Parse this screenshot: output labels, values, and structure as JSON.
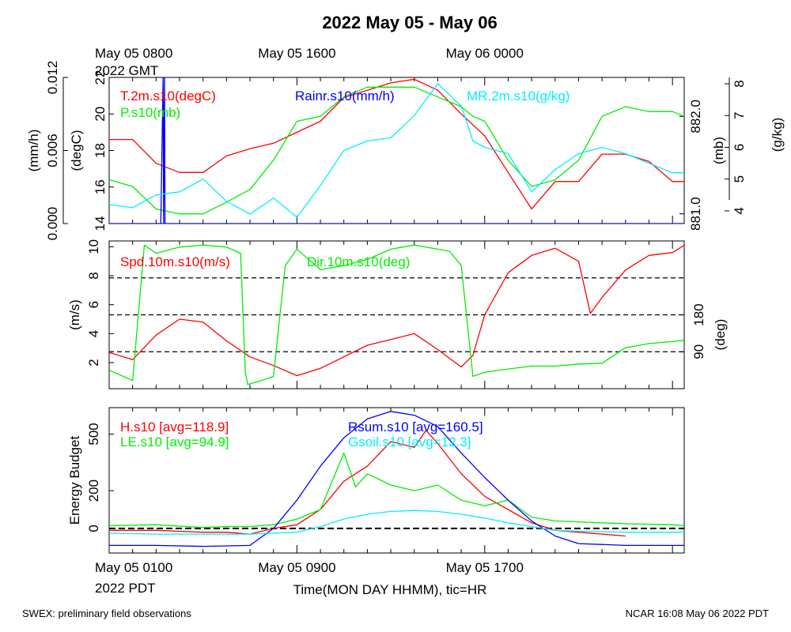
{
  "title": "2022 May 05 - May 06",
  "footer_left": "SWEX: preliminary field observations",
  "footer_right": "NCAR 16:08 May 06 2022 PDT",
  "top_time_labels": [
    {
      "hour": 0,
      "line1": "May 05 0800",
      "line2": "2022 GMT"
    },
    {
      "hour": 8,
      "line1": "May 05 1600",
      "line2": ""
    },
    {
      "hour": 16,
      "line1": "May 06 0000",
      "line2": ""
    }
  ],
  "bottom_time_labels": [
    {
      "hour": 0,
      "line1": "May 05 0100",
      "line2": "2022 PDT"
    },
    {
      "hour": 8,
      "line1": "May 05 0900",
      "line2": ""
    },
    {
      "hour": 16,
      "line1": "May 05 1700",
      "line2": ""
    }
  ],
  "xlabel": "Time(MON DAY HHMM), tic=HR",
  "colors": {
    "red": "#ff0000",
    "green": "#00ee00",
    "blue": "#0000ff",
    "cyan": "#00eeff",
    "black": "#000000"
  },
  "chart_data": [
    {
      "id": "met",
      "type": "line",
      "x_range_hours": [
        0,
        24.5
      ],
      "axes": [
        {
          "side": "left",
          "position": "outer",
          "label": "(mm/h)",
          "range": [
            0.0,
            0.012
          ],
          "ticks": [
            "0.000",
            "0.006",
            "0.012"
          ]
        },
        {
          "side": "left",
          "position": "inner",
          "label": "(degC)",
          "range": [
            14,
            22
          ],
          "ticks": [
            "14",
            "16",
            "18",
            "20",
            "22"
          ]
        },
        {
          "side": "right",
          "position": "inner",
          "label": "(mb)",
          "range": [
            880.9,
            882.4
          ],
          "ticks": [
            "881.0",
            "882.0"
          ]
        },
        {
          "side": "right",
          "position": "outer",
          "label": "(g/kg)",
          "range": [
            3.6,
            8.2
          ],
          "ticks": [
            "4",
            "5",
            "6",
            "7",
            "8"
          ]
        }
      ],
      "series": [
        {
          "name": "T.2m.s10(degC)",
          "color": "red",
          "axis": 1,
          "x": [
            0,
            1,
            2,
            3,
            4,
            5,
            6,
            7,
            8,
            9,
            10,
            11,
            12,
            13,
            14,
            15,
            16,
            17,
            18,
            19,
            20,
            21,
            22,
            23,
            24,
            24.5
          ],
          "y": [
            18.6,
            18.6,
            17.3,
            16.8,
            16.8,
            17.7,
            18.1,
            18.4,
            19.0,
            19.6,
            20.9,
            21.3,
            21.7,
            21.9,
            21.3,
            20.0,
            18.8,
            16.8,
            14.8,
            16.3,
            16.3,
            17.8,
            17.8,
            17.4,
            16.3,
            16.3
          ]
        },
        {
          "name": "P.s10(mb)",
          "color": "green",
          "axis": 2,
          "x": [
            0,
            1,
            2,
            3,
            4,
            5,
            6,
            7,
            8,
            9,
            10,
            11,
            12,
            13,
            14,
            15,
            15.5,
            16,
            17,
            18,
            19,
            20,
            21,
            22,
            23,
            24,
            24.5
          ],
          "y": [
            881.35,
            881.28,
            881.05,
            881.0,
            881.0,
            881.12,
            881.25,
            881.55,
            881.95,
            882.0,
            882.2,
            882.3,
            882.3,
            882.3,
            882.2,
            882.1,
            882.0,
            881.95,
            881.55,
            881.28,
            881.35,
            881.55,
            882.0,
            882.1,
            882.05,
            882.05,
            882.0
          ]
        },
        {
          "name": "Rainr.s10(mm/h)",
          "color": "blue",
          "axis": 0,
          "x": [
            0,
            2.2,
            2.3,
            2.32,
            2.36,
            2.38,
            2.45,
            24.5
          ],
          "y": [
            0,
            0,
            0.012,
            0.0,
            0.012,
            0.0,
            0.0,
            0.0
          ]
        },
        {
          "name": "MR.2m.s10(g/kg)",
          "color": "cyan",
          "axis": 3,
          "x": [
            0,
            1,
            2,
            3,
            4,
            5,
            6,
            7,
            8,
            9,
            10,
            11,
            12,
            13,
            14,
            15,
            15.5,
            16,
            17,
            18,
            19,
            20,
            21,
            22,
            23,
            24,
            24.5
          ],
          "y": [
            4.2,
            4.1,
            4.5,
            4.6,
            5.0,
            4.3,
            3.9,
            4.4,
            3.8,
            4.8,
            5.9,
            6.2,
            6.3,
            7.0,
            8.0,
            7.3,
            6.2,
            6.0,
            5.8,
            4.6,
            5.3,
            5.8,
            6.0,
            5.8,
            5.5,
            5.2,
            5.2
          ]
        }
      ]
    },
    {
      "id": "wind",
      "type": "line",
      "x_range_hours": [
        0,
        24.5
      ],
      "axes": [
        {
          "side": "left",
          "label": "(m/s)",
          "range": [
            0.2,
            10.4
          ],
          "ticks": [
            "2",
            "4",
            "6",
            "8",
            "10"
          ]
        },
        {
          "side": "right",
          "label": "(deg)",
          "range": [
            0,
            360
          ],
          "ticks": [
            "90",
            "180"
          ]
        }
      ],
      "dashed_lines_deg": [
        90,
        180,
        270
      ],
      "series": [
        {
          "name": "Spd.10m.s10(m/s)",
          "color": "red",
          "axis": 0,
          "x": [
            0,
            1,
            2,
            3,
            4,
            5,
            6,
            7,
            8,
            9,
            10,
            11,
            12,
            13,
            14,
            15,
            15.5,
            16,
            17,
            18,
            19,
            20,
            20.5,
            21,
            22,
            23,
            24,
            24.5
          ],
          "y": [
            2.7,
            2.2,
            3.9,
            5.0,
            4.8,
            3.5,
            2.4,
            1.8,
            1.1,
            1.6,
            2.4,
            3.2,
            3.6,
            4.0,
            2.9,
            1.7,
            2.5,
            5.3,
            8.2,
            9.4,
            9.9,
            9.0,
            5.4,
            6.5,
            8.4,
            9.4,
            9.6,
            10.1
          ]
        },
        {
          "name": "Dir.10m.s10(deg)",
          "color": "green",
          "axis": 1,
          "x": [
            0,
            1,
            1.5,
            2,
            3,
            4,
            5,
            5.6,
            5.8,
            5.9,
            6.5,
            7,
            7.5,
            8,
            9,
            10,
            11,
            12,
            13,
            14,
            14.5,
            15,
            15.5,
            16,
            17,
            18,
            19,
            20,
            21,
            22,
            23,
            24,
            24.5
          ],
          "y": [
            45,
            20,
            350,
            330,
            345,
            350,
            345,
            330,
            40,
            10,
            20,
            30,
            300,
            340,
            290,
            300,
            315,
            340,
            350,
            340,
            335,
            300,
            30,
            40,
            48,
            55,
            55,
            60,
            62,
            100,
            110,
            115,
            118
          ]
        }
      ]
    },
    {
      "id": "energy",
      "type": "line",
      "x_range_hours": [
        0,
        24.5
      ],
      "axes": [
        {
          "side": "left",
          "label": "Energy Budget",
          "range": [
            -130,
            640
          ],
          "ticks": [
            "0",
            "200",
            "500"
          ]
        }
      ],
      "dashed_lines_value": [
        0
      ],
      "series": [
        {
          "name": "H.s10 [avg=118.9]",
          "color": "red",
          "x": [
            0,
            2,
            4,
            5,
            6,
            7,
            8,
            9,
            10,
            11,
            12,
            13,
            13.5,
            14,
            15,
            16,
            17,
            18,
            19,
            20,
            21,
            22
          ],
          "y": [
            -10,
            -10,
            -20,
            -20,
            -30,
            0,
            20,
            100,
            250,
            330,
            460,
            430,
            520,
            450,
            290,
            170,
            100,
            30,
            -10,
            -20,
            -30,
            -40
          ]
        },
        {
          "name": "LE.s10 [avg=94.9]",
          "color": "green",
          "x": [
            0,
            2,
            4,
            5,
            6,
            7,
            8,
            9,
            10,
            10.5,
            11,
            12,
            13,
            14,
            15,
            16,
            17,
            18,
            19,
            20,
            22,
            24,
            24.5
          ],
          "y": [
            15,
            20,
            5,
            10,
            10,
            20,
            50,
            100,
            400,
            220,
            290,
            230,
            200,
            230,
            150,
            120,
            150,
            60,
            40,
            35,
            25,
            20,
            15
          ]
        },
        {
          "name": "Rsum.s10 [avg=160.5]",
          "color": "blue",
          "x": [
            0,
            2,
            4,
            6,
            7,
            8,
            9,
            10,
            11,
            12,
            13,
            14,
            15,
            16,
            17,
            18,
            19,
            20,
            22,
            24,
            24.5
          ],
          "y": [
            -90,
            -90,
            -95,
            -90,
            0,
            150,
            330,
            480,
            580,
            620,
            600,
            540,
            400,
            270,
            150,
            40,
            -40,
            -80,
            -90,
            -90,
            -90
          ]
        },
        {
          "name": "Gsoil.s10 [avg=12.3]",
          "color": "cyan",
          "x": [
            0,
            2,
            4,
            6,
            8,
            9,
            10,
            11,
            12,
            13,
            14,
            15,
            16,
            17,
            18,
            19,
            20,
            22,
            24,
            24.5
          ],
          "y": [
            -25,
            -30,
            -30,
            -30,
            -20,
            10,
            50,
            75,
            90,
            95,
            90,
            75,
            55,
            30,
            10,
            -10,
            -15,
            -20,
            -20,
            -20
          ]
        }
      ]
    }
  ]
}
